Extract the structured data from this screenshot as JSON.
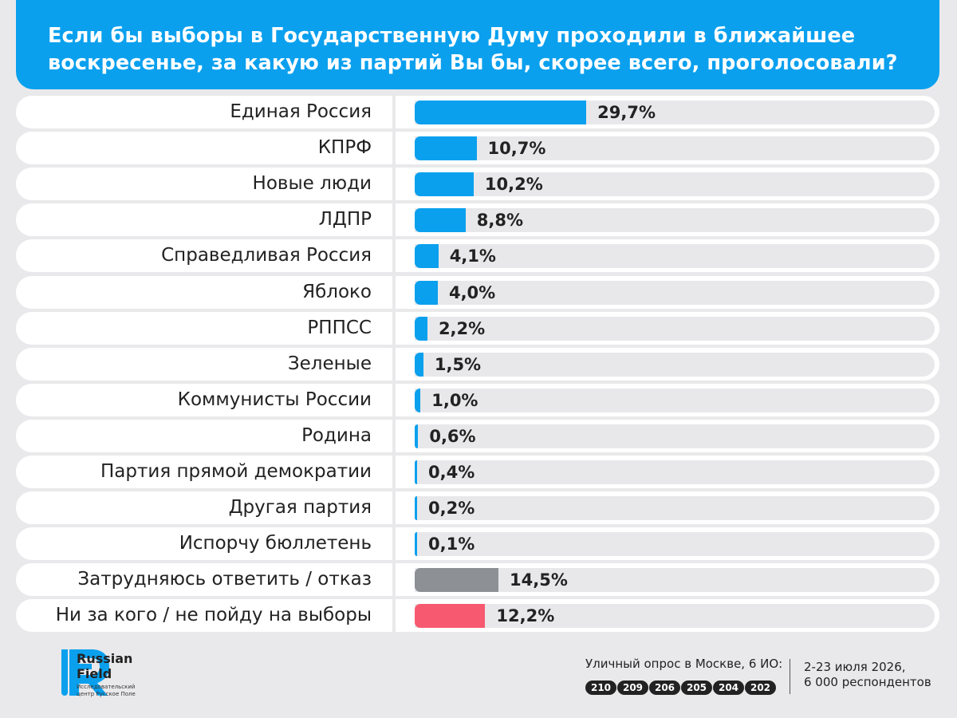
{
  "header": {
    "title_line1": "Если бы выборы в Государственную Думу проходили в ближайшее",
    "title_line2": "воскресенье, за какую из партий Вы бы, скорее всего, проголосовали?"
  },
  "colors": {
    "accent": "#0aa0ee",
    "neutral": "#8d9095",
    "negative": "#f75a70"
  },
  "chart_data": {
    "type": "bar",
    "orientation": "horizontal",
    "categories": [
      "Единая Россия",
      "КПРФ",
      "Новые люди",
      "ЛДПР",
      "Справедливая Россия",
      "Яблоко",
      "РППСС",
      "Зеленые",
      "Коммунисты России",
      "Родина",
      "Партия прямой демократии",
      "Другая партия",
      "Испорчу бюллетень",
      "Затрудняюсь ответить / отказ",
      "Ни за кого / не пойду на выборы"
    ],
    "values": [
      29.7,
      10.7,
      10.2,
      8.8,
      4.1,
      4.0,
      2.2,
      1.5,
      1.0,
      0.6,
      0.4,
      0.2,
      0.1,
      14.5,
      12.2
    ],
    "value_labels": [
      "29,7%",
      "10,7%",
      "10,2%",
      "8,8%",
      "4,1%",
      "4,0%",
      "2,2%",
      "1,5%",
      "1,0%",
      "0,6%",
      "0,4%",
      "0,2%",
      "0,1%",
      "14,5%",
      "12,2%"
    ],
    "bar_colors": [
      "#0aa0ee",
      "#0aa0ee",
      "#0aa0ee",
      "#0aa0ee",
      "#0aa0ee",
      "#0aa0ee",
      "#0aa0ee",
      "#0aa0ee",
      "#0aa0ee",
      "#0aa0ee",
      "#0aa0ee",
      "#0aa0ee",
      "#0aa0ee",
      "#8d9095",
      "#f75a70"
    ],
    "xlim": [
      0,
      90
    ],
    "unit": "%",
    "grid": false,
    "legend": "none"
  },
  "footer": {
    "brand_name_line1": "Russian",
    "brand_name_line2": "Field",
    "brand_sub": "Исследовательский центр Русское Поле",
    "method": "Уличный опрос в Москве, 6 ИО:",
    "districts": [
      "210",
      "209",
      "206",
      "205",
      "204",
      "202"
    ],
    "dates": "2-23 июля 2026,",
    "respondents": "6 000 респондентов",
    "logo_icon": "rf-logo-icon"
  }
}
